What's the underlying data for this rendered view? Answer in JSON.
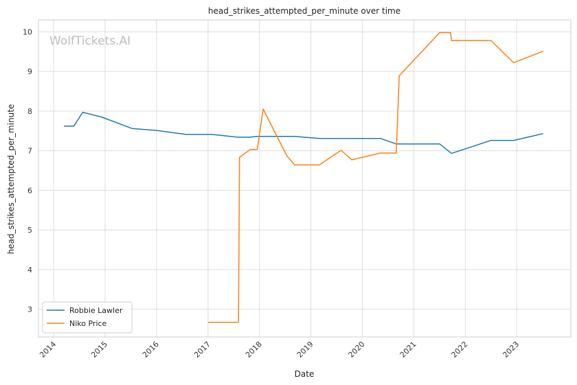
{
  "watermark": "WolfTickets.AI",
  "chart_data": {
    "type": "line",
    "title": "head_strikes_attempted_per_minute over time",
    "xlabel": "Date",
    "ylabel": "head_strikes_attempted_per_minute",
    "xlim": [
      "2013-09-15",
      "2024-01-20"
    ],
    "ylim": [
      2.3,
      10.3
    ],
    "x_ticks": [
      "2014",
      "2015",
      "2016",
      "2017",
      "2018",
      "2019",
      "2020",
      "2021",
      "2022",
      "2023"
    ],
    "y_ticks": [
      3,
      4,
      5,
      6,
      7,
      8,
      9,
      10
    ],
    "grid": true,
    "legend_position": "lower-left",
    "series": [
      {
        "name": "Robbie Lawler",
        "color": "#1f77b4",
        "points": [
          [
            "2014-03-15",
            7.62
          ],
          [
            "2014-05-24",
            7.62
          ],
          [
            "2014-07-26",
            7.97
          ],
          [
            "2014-12-06",
            7.85
          ],
          [
            "2015-07-11",
            7.56
          ],
          [
            "2016-01-02",
            7.51
          ],
          [
            "2016-07-30",
            7.41
          ],
          [
            "2017-01-29",
            7.41
          ],
          [
            "2017-07-29",
            7.34
          ],
          [
            "2017-10-28",
            7.34
          ],
          [
            "2017-12-16",
            7.36
          ],
          [
            "2018-09-08",
            7.36
          ],
          [
            "2019-03-02",
            7.31
          ],
          [
            "2019-08-03",
            7.31
          ],
          [
            "2020-05-09",
            7.31
          ],
          [
            "2020-08-29",
            7.17
          ],
          [
            "2021-07-03",
            7.17
          ],
          [
            "2021-09-25",
            6.93
          ],
          [
            "2022-07-02",
            7.26
          ],
          [
            "2022-12-10",
            7.26
          ],
          [
            "2023-07-08",
            7.43
          ]
        ]
      },
      {
        "name": "Niko Price",
        "color": "#ff7f0e",
        "points": [
          [
            "2016-12-30",
            2.67
          ],
          [
            "2017-08-05",
            2.67
          ],
          [
            "2017-08-12",
            6.83
          ],
          [
            "2017-10-28",
            7.03
          ],
          [
            "2017-12-16",
            7.03
          ],
          [
            "2018-01-27",
            8.05
          ],
          [
            "2018-07-14",
            6.87
          ],
          [
            "2018-09-08",
            6.64
          ],
          [
            "2019-03-02",
            6.64
          ],
          [
            "2019-08-03",
            7.01
          ],
          [
            "2019-10-18",
            6.77
          ],
          [
            "2020-05-09",
            6.94
          ],
          [
            "2020-08-29",
            6.94
          ],
          [
            "2020-09-19",
            8.89
          ],
          [
            "2021-07-03",
            9.98
          ],
          [
            "2021-09-18",
            9.98
          ],
          [
            "2021-09-25",
            9.78
          ],
          [
            "2022-07-02",
            9.78
          ],
          [
            "2022-12-10",
            9.22
          ],
          [
            "2023-07-08",
            9.51
          ]
        ]
      }
    ]
  }
}
